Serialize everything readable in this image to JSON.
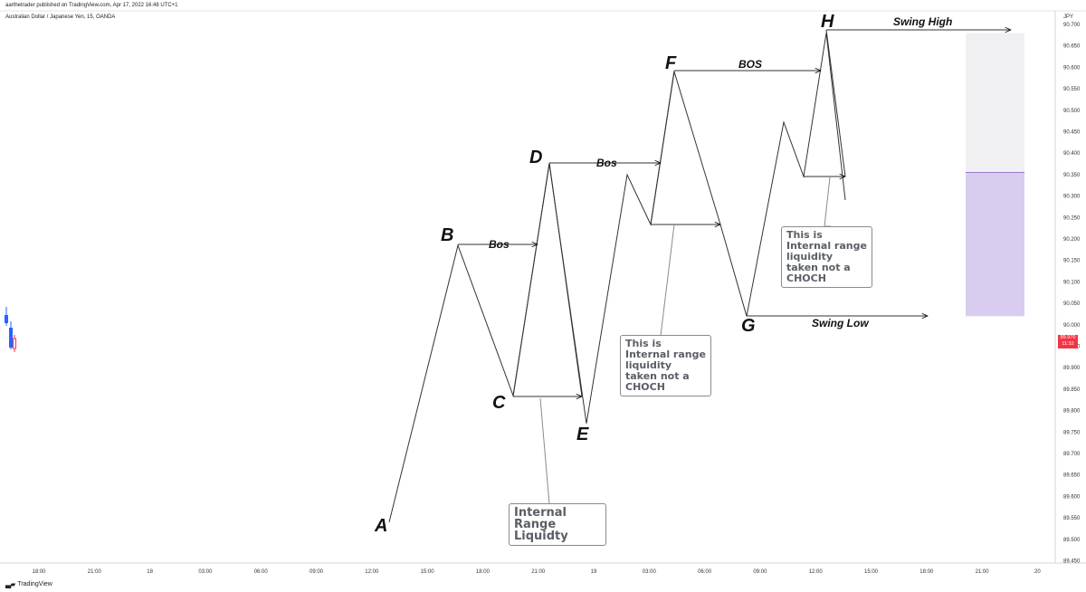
{
  "header": {
    "publish_line": "aarthetrader published on TradingView.com, Apr 17, 2022 16:48 UTC+1",
    "symbol_line": "Australian Dollar / Japanese Yen, 15, OANDA"
  },
  "footer": {
    "brand": "TradingView"
  },
  "chart_data": {
    "type": "line",
    "currency": "JPY",
    "y_ticks": [
      "90.700",
      "90.650",
      "90.600",
      "90.550",
      "90.500",
      "90.450",
      "90.400",
      "90.350",
      "90.300",
      "90.250",
      "90.200",
      "90.150",
      "90.100",
      "90.050",
      "90.000",
      "89.950",
      "89.900",
      "89.850",
      "89.800",
      "89.750",
      "89.700",
      "89.650",
      "89.600",
      "89.550",
      "89.500",
      "89.450"
    ],
    "x_ticks": [
      "18:00",
      "21:00",
      "18",
      "03:00",
      "06:00",
      "09:00",
      "12:00",
      "15:00",
      "18:00",
      "21:00",
      "19",
      "03:00",
      "06:00",
      "09:00",
      "12:00",
      "15:00",
      "18:00",
      "21:00",
      "20"
    ],
    "current_price": "89.970",
    "countdown": "11:32",
    "swing_points": [
      {
        "label": "A",
        "y": 89.54
      },
      {
        "label": "B",
        "y": 90.185
      },
      {
        "label": "C",
        "y": 89.835
      },
      {
        "label": "D",
        "y": 90.375
      },
      {
        "label": "E",
        "y": 89.77
      },
      {
        "label": "F",
        "y": 90.59
      },
      {
        "label": "G",
        "y": 90.02
      },
      {
        "label": "H",
        "y": 90.68
      }
    ],
    "annotations": {
      "bos_1": "Bos",
      "bos_2": "Bos",
      "bos_3": "BOS",
      "swing_high": "Swing High",
      "swing_low": "Swing Low"
    },
    "notes": {
      "internal_range": "Internal Range Liquidty",
      "note_1": "This is Internal range liquidity taken not a CHOCH",
      "note_2": "This is Internal range liquidity taken not a CHOCH"
    },
    "zone": {
      "top": 90.68,
      "mid": 90.355,
      "bottom": 90.02
    }
  }
}
